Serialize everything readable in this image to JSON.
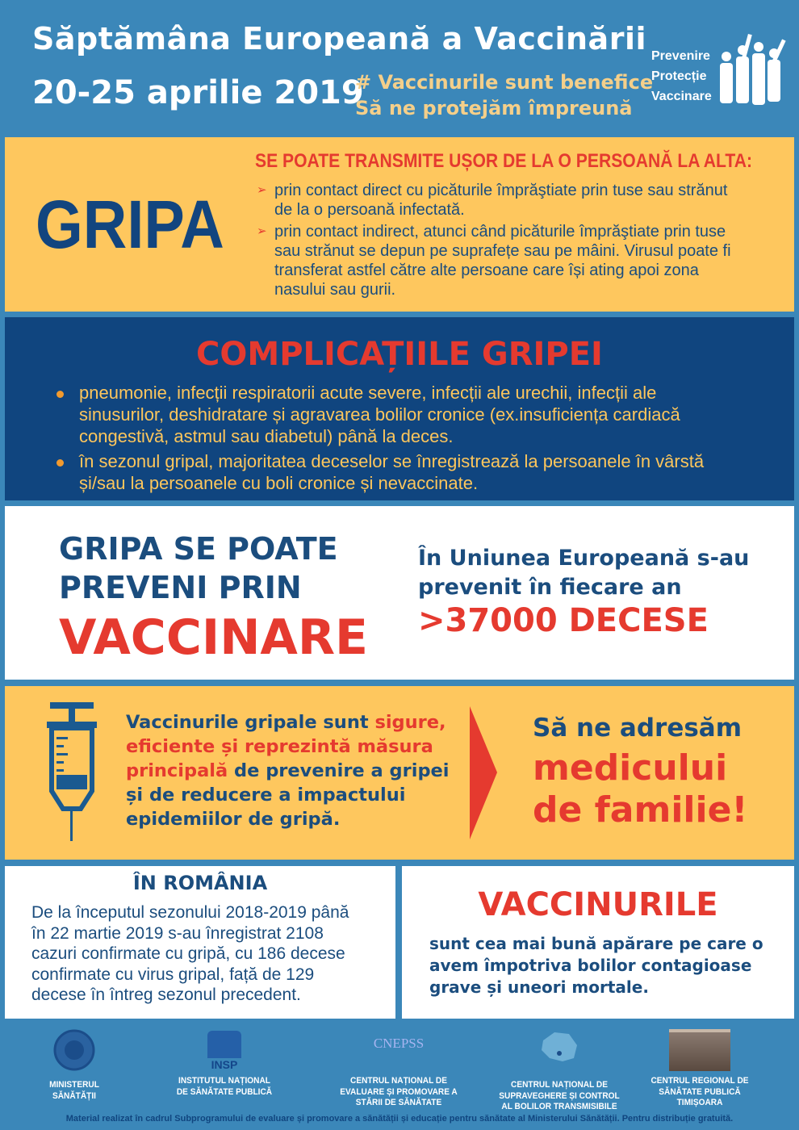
{
  "header": {
    "title": "Săptămâna Europeană a Vaccinării",
    "dates": "20-25 aprilie 2019",
    "hashtag_lines": [
      "# Vaccinurile sunt benefice",
      "Să ne protejăm împreună"
    ],
    "side_lines": [
      "Prevenire",
      "Protecție",
      "Vaccinare"
    ]
  },
  "gripa": {
    "title": "GRIPA",
    "transmission_title": "SE POATE TRANSMITE UȘOR DE LA O PERSOANĂ LA ALTA:",
    "bullets": [
      [
        "prin contact direct cu picăturile împrăştiate prin tuse sau strănut",
        "de la o persoană infectată."
      ],
      [
        "prin contact indirect, atunci când picăturile împrăştiate prin tuse",
        "sau strănut se depun pe suprafețe sau pe mâini. Virusul poate fi",
        "transferat astfel către alte persoane care își ating apoi zona",
        "nasului sau gurii."
      ]
    ]
  },
  "complications": {
    "title": "COMPLICAȚIILE GRIPEI",
    "bullets": [
      [
        "pneumonie, infecții respiratorii acute severe, infecții ale urechii, infecții ale",
        "sinusurilor, deshidratare și agravarea bolilor cronice (ex.insuficiența cardiacă",
        "congestivă, astmul sau diabetul) până la deces."
      ],
      [
        "în sezonul gripal, majoritatea deceselor se înregistrează la persoanele în vârstă",
        "și/sau la persoanele cu boli cronice și nevaccinate."
      ]
    ]
  },
  "prevention": {
    "lines": [
      "GRIPA SE POATE",
      "PREVENI PRIN"
    ],
    "highlight": "VACCINARE",
    "eu_lines": [
      "În Uniunea Europeană s-au",
      "prevenit în fiecare an"
    ],
    "deaths": ">37000 DECESE"
  },
  "vaccines": {
    "l1a": "Vaccinurile gripale sunt ",
    "l1b": "sigure,",
    "l2": "eficiente și reprezintă măsura",
    "l3a": "principală",
    "l3b": " de prevenire a gripei",
    "l4": "și de reducere a impactului",
    "l5": "epidemiilor de gripă.",
    "adr": "Să ne adresăm",
    "med_lines": [
      "medicului",
      "de familie!"
    ]
  },
  "romania": {
    "title": "ÎN ROMÂNIA",
    "lines": [
      "De la începutul sezonului 2018-2019 până",
      "în 22 martie 2019 s-au înregistrat 2108",
      "cazuri confirmate cu gripă, cu 186 decese",
      "confirmate cu virus gripal, față de 129",
      "decese în întreg sezonul precedent."
    ]
  },
  "vaccinurile": {
    "title": "VACCINURILE",
    "lines": [
      "sunt cea mai bună apărare pe care o",
      "avem împotriva bolilor contagioase",
      "grave și uneori mortale."
    ]
  },
  "logos": [
    {
      "caption": [
        "MINISTERUL",
        "SĂNĂTĂȚII"
      ]
    },
    {
      "text": "INSP",
      "caption": [
        "INSTITUTUL NAȚIONAL",
        "DE SĂNĂTATE PUBLICĂ"
      ]
    },
    {
      "text": "CNEPSS",
      "caption": [
        "CENTRUL NAȚIONAL DE",
        "EVALUARE ȘI PROMOVARE A",
        "STĂRII DE SĂNĂTATE"
      ]
    },
    {
      "caption": [
        "CENTRUL NAȚIONAL DE",
        "SUPRAVEGHERE ȘI CONTROL",
        "AL BOLILOR TRANSMISIBILE"
      ]
    },
    {
      "caption": [
        "CENTRUL REGIONAL DE",
        "SĂNĂTATE PUBLICĂ",
        "TIMIȘOARA"
      ]
    }
  ],
  "footer": "Material realizat în cadrul Subprogramului de evaluare și promovare a sănătății și educație pentru sănătate al Ministerului Sănătății. Pentru distribuție gratuită.",
  "colors": {
    "background": "#3b87b9",
    "yellow": "#fec75e",
    "dark_blue": "#10457f",
    "red": "#e53a2f"
  }
}
